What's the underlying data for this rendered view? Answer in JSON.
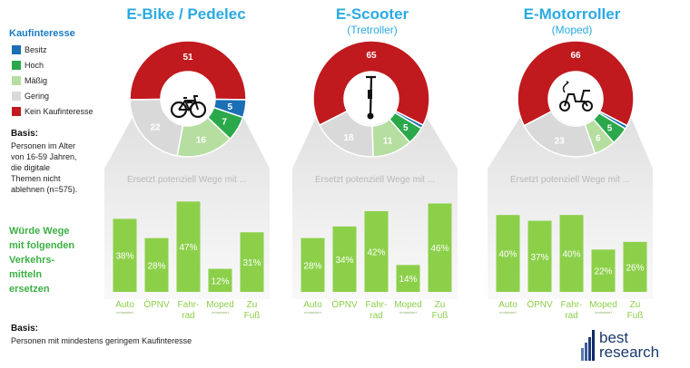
{
  "legend": {
    "title": "Kaufinteresse",
    "items": [
      {
        "label": "Besitz",
        "color": "#1a6fb5"
      },
      {
        "label": "Hoch",
        "color": "#2aa84a"
      },
      {
        "label": "Mäßig",
        "color": "#b5dea0"
      },
      {
        "label": "Gering",
        "color": "#d9d9d9"
      },
      {
        "label": "Kein Kaufinteresse",
        "color": "#c0191e"
      }
    ]
  },
  "basis_top": {
    "title": "Basis:",
    "lines": [
      "Personen im Alter",
      "von 16-59 Jahren,",
      "die digitale",
      "Themen nicht",
      "ablehnen (n=575)."
    ]
  },
  "replace_label": {
    "lines": [
      "Würde Wege",
      "mit folgenden",
      "Verkehrs-",
      "mitteln",
      "ersetzen"
    ]
  },
  "basis_bottom": {
    "title": "Basis:",
    "text": "Personen mit mindestens geringem Kaufinteresse"
  },
  "panel_heading": "Ersetzt potenziell Wege mit ...",
  "logo": {
    "line1": "best",
    "line2": "research"
  },
  "chart_data": [
    {
      "type": "pie",
      "title": "E-Bike / Pedelec",
      "subtitle": "",
      "icon": "bicycle-icon",
      "slices": [
        {
          "category": "Kein Kaufinteresse",
          "value": 51,
          "color": "#c0191e"
        },
        {
          "category": "Besitz",
          "value": 5,
          "color": "#1a6fb5"
        },
        {
          "category": "Hoch",
          "value": 7,
          "color": "#2aa84a"
        },
        {
          "category": "Mäßig",
          "value": 16,
          "color": "#b5dea0"
        },
        {
          "category": "Gering",
          "value": 22,
          "color": "#d9d9d9"
        }
      ]
    },
    {
      "type": "pie",
      "title": "E-Scooter",
      "subtitle": "(Tretroller)",
      "icon": "kick-scooter-icon",
      "slices": [
        {
          "category": "Kein Kaufinteresse",
          "value": 65,
          "color": "#c0191e"
        },
        {
          "category": "Besitz",
          "value": 1,
          "color": "#1a6fb5"
        },
        {
          "category": "Hoch",
          "value": 5,
          "color": "#2aa84a"
        },
        {
          "category": "Mäßig",
          "value": 11,
          "color": "#b5dea0"
        },
        {
          "category": "Gering",
          "value": 18,
          "color": "#d9d9d9"
        }
      ]
    },
    {
      "type": "pie",
      "title": "E-Motorroller",
      "subtitle": "(Moped)",
      "icon": "moped-icon",
      "slices": [
        {
          "category": "Kein Kaufinteresse",
          "value": 66,
          "color": "#c0191e"
        },
        {
          "category": "Besitz",
          "value": 1,
          "color": "#1a6fb5"
        },
        {
          "category": "Hoch",
          "value": 5,
          "color": "#2aa84a"
        },
        {
          "category": "Mäßig",
          "value": 6,
          "color": "#b5dea0"
        },
        {
          "category": "Gering",
          "value": 23,
          "color": "#d9d9d9"
        }
      ]
    },
    {
      "type": "bar",
      "title": "E-Bike / Pedelec – Ersetzt potenziell Wege mit ...",
      "categories": [
        {
          "line1": "Auto",
          "line2": "motorisiert"
        },
        {
          "line1": "ÖPNV",
          "line2": ""
        },
        {
          "line1": "Fahr-",
          "line2": "rad"
        },
        {
          "line1": "Moped",
          "line2": "motorisiert"
        },
        {
          "line1": "Zu",
          "line2": "Fuß"
        }
      ],
      "values": [
        38,
        28,
        47,
        12,
        31
      ],
      "labels": [
        "38%",
        "28%",
        "47%",
        "12%",
        "31%"
      ],
      "ylim": [
        0,
        50
      ]
    },
    {
      "type": "bar",
      "title": "E-Scooter – Ersetzt potenziell Wege mit ...",
      "categories": [
        {
          "line1": "Auto",
          "line2": "motorisiert"
        },
        {
          "line1": "ÖPNV",
          "line2": ""
        },
        {
          "line1": "Fahr-",
          "line2": "rad"
        },
        {
          "line1": "Moped",
          "line2": "motorisiert"
        },
        {
          "line1": "Zu",
          "line2": "Fuß"
        }
      ],
      "values": [
        28,
        34,
        42,
        14,
        46
      ],
      "labels": [
        "28%",
        "34%",
        "42%",
        "14%",
        "46%"
      ],
      "ylim": [
        0,
        50
      ]
    },
    {
      "type": "bar",
      "title": "E-Motorroller – Ersetzt potenziell Wege mit ...",
      "categories": [
        {
          "line1": "Auto",
          "line2": "motorisiert"
        },
        {
          "line1": "ÖPNV",
          "line2": ""
        },
        {
          "line1": "Fahr-",
          "line2": "rad"
        },
        {
          "line1": "Moped",
          "line2": "motorisiert"
        },
        {
          "line1": "Zu",
          "line2": "Fuß"
        }
      ],
      "values": [
        40,
        37,
        40,
        22,
        26
      ],
      "labels": [
        "40%",
        "37%",
        "40%",
        "22%",
        "26%"
      ],
      "ylim": [
        0,
        50
      ]
    }
  ]
}
